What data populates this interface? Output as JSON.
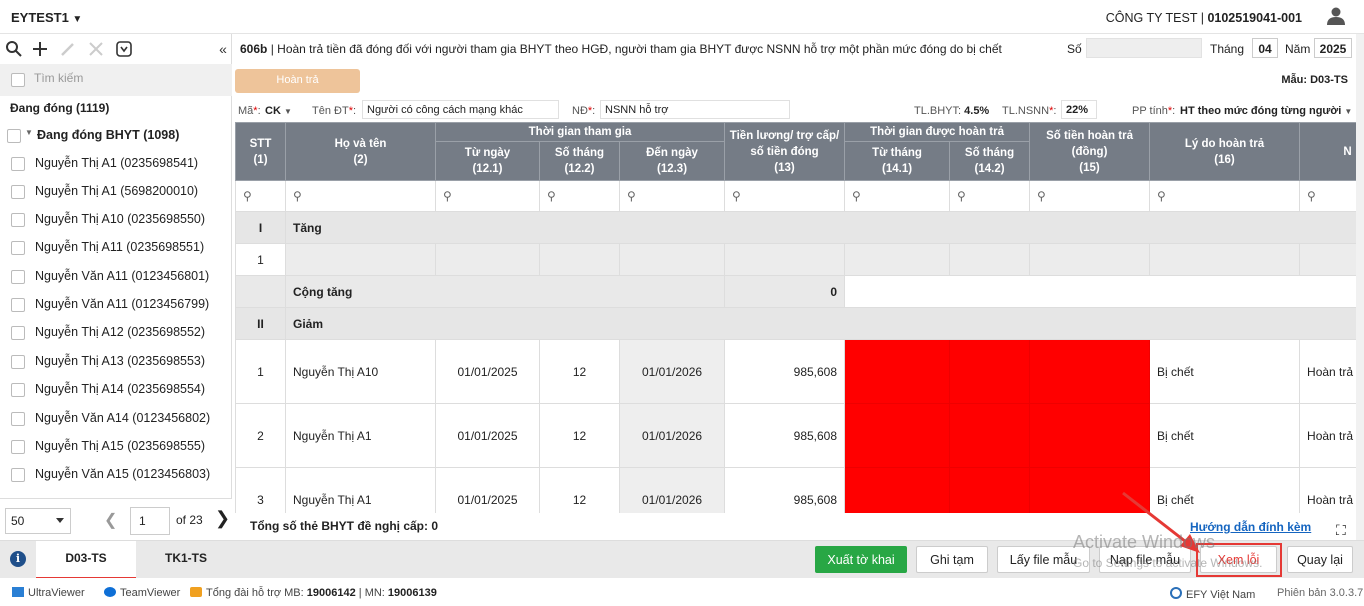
{
  "header": {
    "workspace": "EYTEST1",
    "company_name": "CÔNG TY TEST",
    "company_code": "0102519041-001"
  },
  "left": {
    "search_placeholder": "Tìm kiếm",
    "status_title": "Đang đóng (1119)",
    "group_label": "Đang đóng BHYT (1098)",
    "people": [
      "Nguyễn Thị A1 (0235698541)",
      "Nguyễn Thị A1 (5698200010)",
      "Nguyễn Thị A10 (0235698550)",
      "Nguyễn Thị A11 (0235698551)",
      "Nguyễn Văn A11 (0123456801)",
      "Nguyễn Văn A11 (0123456799)",
      "Nguyễn Thị A12 (0235698552)",
      "Nguyễn Thị A13 (0235698553)",
      "Nguyễn Thị A14 (0235698554)",
      "Nguyễn Văn A14 (0123456802)",
      "Nguyễn Thị A15 (0235698555)",
      "Nguyễn Văn A15 (0123456803)"
    ],
    "pager": {
      "page_size": "50",
      "current_page": "1",
      "of_label": "of",
      "total_pages": "23"
    }
  },
  "form": {
    "code": "606b",
    "title": "| Hoàn trả tiền đã đóng đối với người tham gia BHYT theo HGĐ, người tham gia BHYT được NSNN hỗ trợ một phần mức đóng do bị chết",
    "so_label": "Số",
    "so_value": "",
    "thang_label": "Tháng",
    "thang_value": "04",
    "nam_label": "Năm",
    "nam_value": "2025",
    "hoantra_button": "Hoàn trả",
    "mau_label": "Mẫu:",
    "mau_value": "D03-TS"
  },
  "filters": {
    "ma_label": "Mã",
    "ma_value": "CK",
    "doituong_label": "Tên ĐT",
    "doituong_value": "Người có công cách mạng khác",
    "nd_label": "NĐ",
    "nd_value": "NSNN hỗ trợ",
    "tl_bhyt_label": "TL.BHYT:",
    "tl_bhyt_value": "4.5%",
    "tl_nsnn_label": "TL.NSNN",
    "tl_nsnn_value": "22%",
    "pp_label": "PP tính",
    "pp_value": "HT theo mức đóng từng người"
  },
  "table": {
    "h_stt": "STT",
    "h_stt_n": "(1)",
    "h_name": "Họ và tên",
    "h_name_n": "(2)",
    "h_tgtg": "Thời gian tham gia",
    "h_tungay": "Từ ngày",
    "h_tungay_n": "(12.1)",
    "h_sothang": "Số tháng",
    "h_sothang_n": "(12.2)",
    "h_denngay": "Đến ngày",
    "h_denngay_n": "(12.3)",
    "h_luong1": "Tiền lương/ trợ cấp/",
    "h_luong2": "số tiền đóng",
    "h_luong_n": "(13)",
    "h_tghoantra": "Thời gian được hoàn trả",
    "h_tuthang": "Từ tháng",
    "h_tuthang_n": "(14.1)",
    "h_sothang2": "Số tháng",
    "h_sothang2_n": "(14.2)",
    "h_sotien1": "Số tiền hoàn trả",
    "h_sotien2": "(đồng)",
    "h_sotien_n": "(15)",
    "h_lydo": "Lý do hoàn trả",
    "h_lydo_n": "(16)",
    "h_next": "N",
    "sec1_num": "I",
    "sec1_label": "Tăng",
    "blank_num": "1",
    "sum_label": "Cộng tăng",
    "sum_value": "0",
    "sec2_num": "II",
    "sec2_label": "Giảm",
    "rows": [
      {
        "stt": "1",
        "name": "Nguyễn Thị A10",
        "tungay": "01/01/2025",
        "sothang": "12",
        "denngay": "01/01/2026",
        "luong": "985,608",
        "lydo": "Bị chết",
        "next": "Hoàn trả t"
      },
      {
        "stt": "2",
        "name": "Nguyễn Thị A1",
        "tungay": "01/01/2025",
        "sothang": "12",
        "denngay": "01/01/2026",
        "luong": "985,608",
        "lydo": "Bị chết",
        "next": "Hoàn trả t"
      },
      {
        "stt": "3",
        "name": "Nguyễn Thị A1",
        "tungay": "01/01/2025",
        "sothang": "12",
        "denngay": "01/01/2026",
        "luong": "985,608",
        "lydo": "Bị chết",
        "next": "Hoàn trả t"
      }
    ],
    "error_color": "#ff0000"
  },
  "footer_info": {
    "total_label": "Tổng số thẻ BHYT đề nghị cấp: 0",
    "guide_link": "Hướng dẫn đính kèm"
  },
  "tabs": [
    "D03-TS",
    "TK1-TS"
  ],
  "buttons": {
    "xuat": "Xuất tờ khai",
    "ghi": "Ghi tạm",
    "lay": "Lấy file mẫu",
    "nap": "Nạp file mẫu",
    "xem": "Xem lỗi",
    "quay": "Quay lại"
  },
  "watermark": {
    "line1": "Activate Windows",
    "line2": "Go to Settings to activate Windows."
  },
  "status_bar": {
    "ultraviewer": "UltraViewer",
    "teamviewer": "TeamViewer",
    "hotline_label": "Tổng đài hỗ trợ MB:",
    "hotline_mb": "19006142",
    "hotline_sep": "| MN:",
    "hotline_mn": "19006139",
    "brand": "EFY Việt Nam",
    "version": "Phiên bản 3.0.3.7"
  },
  "colors": {
    "accent_green": "#28a745",
    "header_grey": "#757c86",
    "error_red": "#ff0000",
    "highlight": "#e53935",
    "link_blue": "#1565c0"
  }
}
